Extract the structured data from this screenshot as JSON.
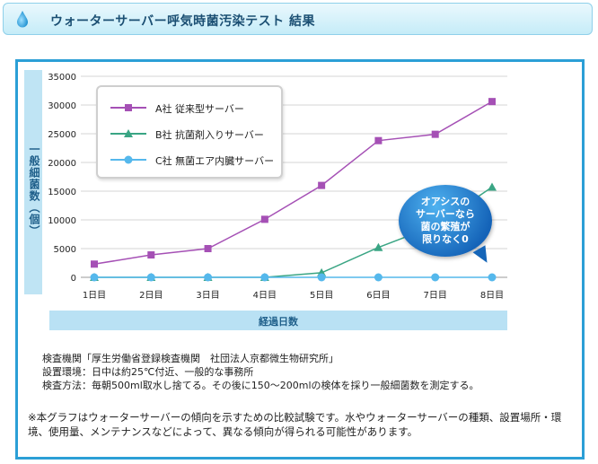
{
  "header": {
    "title": "ウォーターサーバー呼気時菌汚染テスト 結果",
    "icon": "water-drop-icon"
  },
  "chart_data": {
    "type": "line",
    "ylabel": "一般細菌数（個）",
    "xlabel": "経過日数",
    "categories": [
      "1日目",
      "2日目",
      "3日目",
      "4日目",
      "5日目",
      "6日目",
      "7日目",
      "8日目"
    ],
    "ylim": [
      0,
      35000
    ],
    "yticks": [
      0,
      5000,
      10000,
      15000,
      20000,
      25000,
      30000,
      35000
    ],
    "ytick_labels": [
      "0",
      "5000",
      "10000",
      "15000",
      "20000",
      "25000",
      "30000",
      "35000"
    ],
    "grid": true,
    "legend_position": "top-left",
    "series": [
      {
        "name": "A社 従来型サーバー",
        "color": "#a550b5",
        "marker": "square",
        "values": [
          2300,
          3900,
          5000,
          10100,
          16000,
          23800,
          24900,
          30600
        ]
      },
      {
        "name": "B社 抗菌剤入りサーバー",
        "color": "#3aa584",
        "marker": "triangle",
        "values": [
          0,
          0,
          0,
          0,
          800,
          5200,
          9000,
          15700
        ]
      },
      {
        "name": "C社 無菌エア内臓サーバー",
        "color": "#55b8ec",
        "marker": "circle",
        "values": [
          0,
          0,
          0,
          0,
          0,
          0,
          0,
          0
        ]
      }
    ],
    "annotation": [
      "オアシスの",
      "サーバーなら",
      "菌の繁殖が",
      "限りなく0"
    ]
  },
  "notes": [
    "検査機関「厚生労働省登録検査機関　社団法人京都微生物研究所」",
    "設置環境：日中は約25℃付近、一般的な事務所",
    "検査方法：毎朝500ml取水し捨てる。その後に150～200mlの検体を採り一般細菌数を測定する。"
  ],
  "remark": "※本グラフはウォーターサーバーの傾向を示すための比較試験です。水やウォーターサーバーの種類、設置場所・環境、使用量、メンテナンスなどによって、異なる傾向が得られる可能性があります。"
}
